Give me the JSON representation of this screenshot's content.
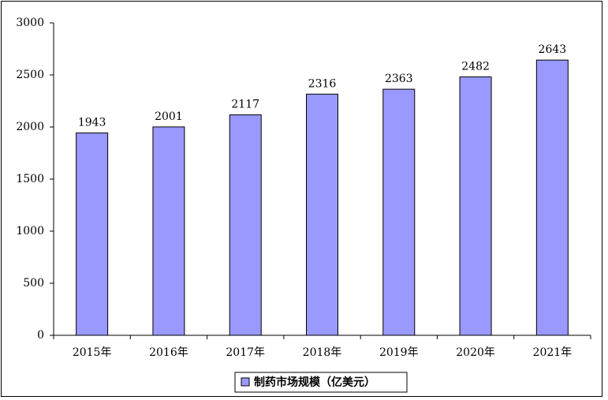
{
  "chart_data": {
    "type": "bar",
    "categories": [
      "2015年",
      "2016年",
      "2017年",
      "2018年",
      "2019年",
      "2020年",
      "2021年"
    ],
    "series": [
      {
        "name": "制药市场规模（亿美元）",
        "color": "#9999ff",
        "values": [
          1943,
          2001,
          2117,
          2316,
          2363,
          2482,
          2643
        ]
      }
    ],
    "ylim": [
      0,
      3000
    ],
    "yticks": [
      0,
      500,
      1000,
      1500,
      2000,
      2500,
      3000
    ],
    "grid": false,
    "legend": "bottom",
    "data_labels": true
  }
}
